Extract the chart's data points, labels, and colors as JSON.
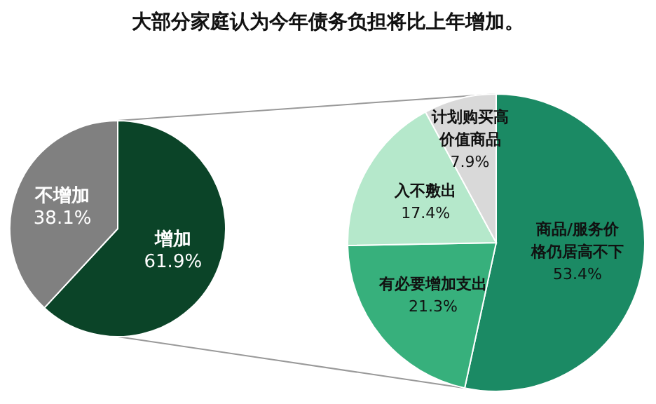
{
  "chart_data": [
    {
      "type": "pie",
      "title": "大部分家庭认为今年债务负担将比上年增加。",
      "categories": [
        "增加",
        "不增加"
      ],
      "values": [
        61.9,
        38.1
      ],
      "colors": [
        "#0b4428",
        "#808080"
      ],
      "value_labels": [
        "61.9%",
        "38.1%"
      ]
    },
    {
      "type": "pie",
      "categories": [
        "商品/服务价格仍居高不下",
        "有必要增加支出",
        "入不敷出",
        "计划购买高价值商品"
      ],
      "values": [
        53.4,
        21.3,
        17.4,
        7.9
      ],
      "colors": [
        "#1b8a64",
        "#37b07c",
        "#b5e8cb",
        "#d9d9d9"
      ],
      "value_labels": [
        "53.4%",
        "21.3%",
        "17.4%",
        "7.9%"
      ]
    }
  ]
}
